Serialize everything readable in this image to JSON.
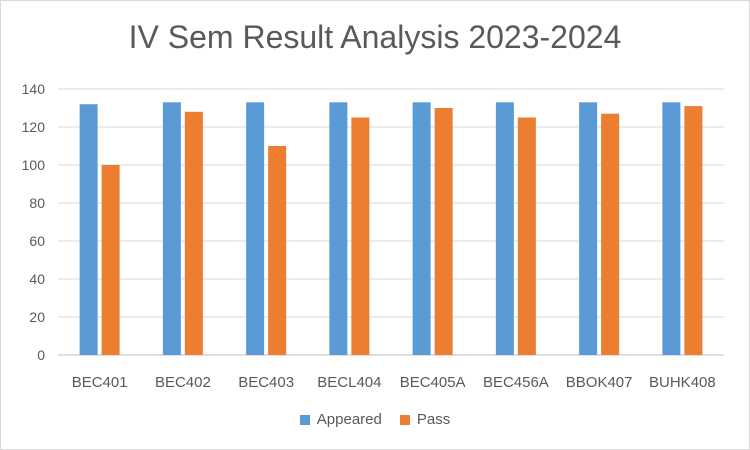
{
  "chart_data": {
    "type": "bar",
    "title": "IV Sem Result Analysis 2023-2024",
    "xlabel": "",
    "ylabel": "",
    "categories": [
      "BEC401",
      "BEC402",
      "BEC403",
      "BECL404",
      "BEC405A",
      "BEC456A",
      "BBOK407",
      "BUHK408"
    ],
    "series": [
      {
        "name": "Appeared",
        "color": "#5b9bd5",
        "values": [
          132,
          133,
          133,
          133,
          133,
          133,
          133,
          133
        ]
      },
      {
        "name": "Pass",
        "color": "#ed7d31",
        "values": [
          100,
          128,
          110,
          125,
          130,
          125,
          127,
          131
        ]
      }
    ],
    "ylim": [
      0,
      140
    ],
    "yticks": [
      "0",
      "20",
      "40",
      "60",
      "80",
      "100",
      "120",
      "140"
    ],
    "grid": true,
    "legend_position": "bottom"
  }
}
